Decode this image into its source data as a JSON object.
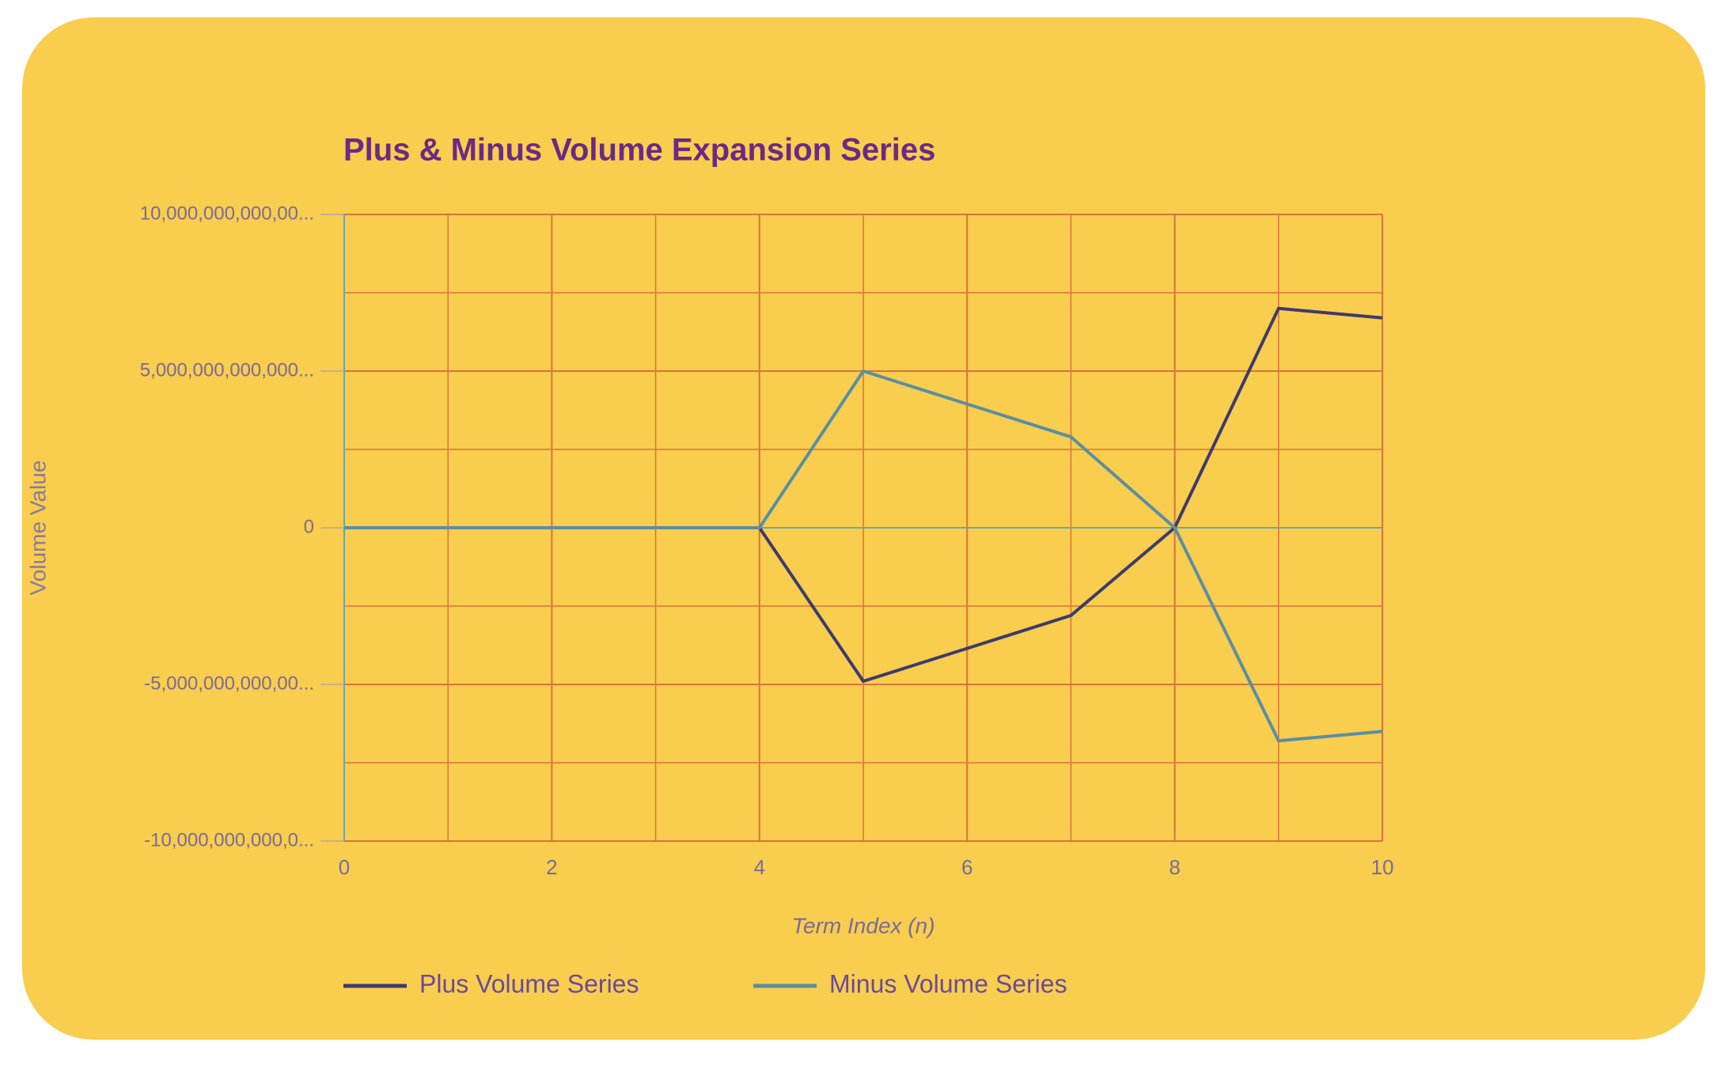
{
  "chart_data": {
    "type": "line",
    "title": "Plus & Minus Volume Expansion Series",
    "x_label": "Term Index (n)",
    "y_label": "Volume Value",
    "x": [
      0,
      1,
      2,
      3,
      4,
      5,
      6,
      7,
      8,
      9,
      10
    ],
    "series": [
      {
        "name": "Plus Volume Series",
        "color": "#3d3b6e",
        "values": [
          0,
          0,
          0,
          0,
          0,
          -4900000000000,
          -3850000000000,
          -2800000000000,
          0,
          7000000000000,
          6700000000000
        ]
      },
      {
        "name": "Minus Volume Series",
        "color": "#5b8ea3",
        "values": [
          0,
          0,
          0,
          0,
          0,
          5000000000000,
          3950000000000,
          2900000000000,
          0,
          -6800000000000,
          -6500000000000
        ]
      }
    ],
    "xlim": [
      0,
      10
    ],
    "xticks": [
      0,
      2,
      4,
      6,
      8,
      10
    ],
    "ylim": [
      -10000000000000,
      10000000000000
    ],
    "yticks": [
      {
        "value": -10000000000000,
        "label": "-10,000,000,000,0..."
      },
      {
        "value": -5000000000000,
        "label": "-5,000,000,000,00..."
      },
      0,
      {
        "value": 5000000000000,
        "label": "5,000,000,000,000..."
      },
      {
        "value": 10000000000000,
        "label": "10,000,000,000,00..."
      }
    ],
    "grid": true,
    "legend": "bottom-left"
  }
}
